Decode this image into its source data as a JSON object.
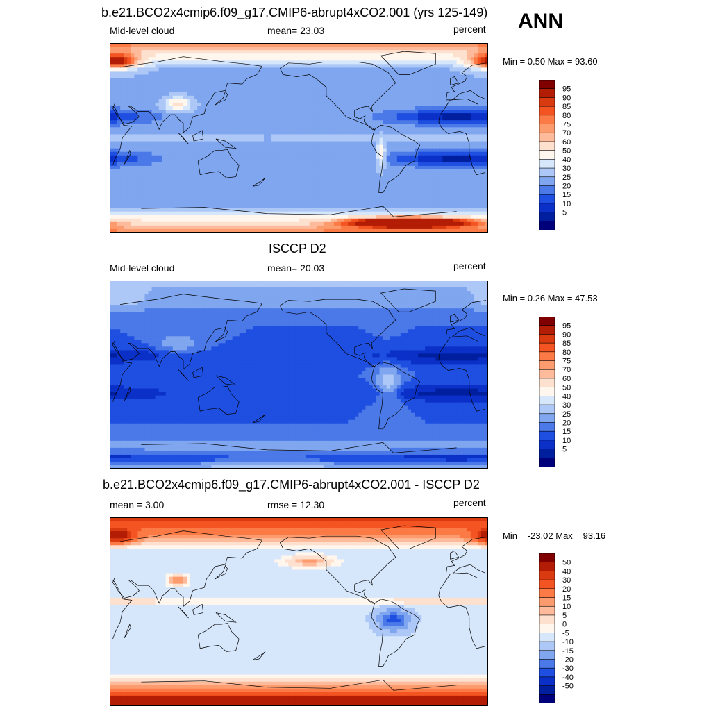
{
  "season": "ANN",
  "panels": [
    {
      "id": "model",
      "title": "b.e21.BCO2x4cmip6.f09_g17.CMIP6-abrupt4xCO2.001 (yrs 125-149)",
      "left_label": "Mid-level cloud",
      "center_label": "mean=  23.03",
      "right_label": "percent",
      "minmax": "Min =   0.50 Max =  93.60",
      "field_type": "model",
      "colorbar": {
        "labels": [
          "95",
          "90",
          "85",
          "80",
          "75",
          "70",
          "60",
          "50",
          "40",
          "30",
          "25",
          "20",
          "15",
          "10",
          "5"
        ],
        "colors": [
          "#800000",
          "#b31c05",
          "#d93a0f",
          "#f45422",
          "#fb7a45",
          "#fc9b6e",
          "#fdbb9b",
          "#fee0cf",
          "#fff6ee",
          "#d6e6fb",
          "#adc8f6",
          "#7fa6ef",
          "#4b79e8",
          "#1e4fe0",
          "#0b30c8",
          "#001f9e",
          "#00007a"
        ]
      }
    },
    {
      "id": "obs",
      "title": "ISCCP D2",
      "left_label": "Mid-level cloud",
      "center_label": "mean=  20.03",
      "right_label": "percent",
      "minmax": "Min =   0.26 Max =  47.53",
      "field_type": "obs",
      "colorbar": {
        "labels": [
          "95",
          "90",
          "85",
          "80",
          "75",
          "70",
          "60",
          "50",
          "40",
          "30",
          "25",
          "20",
          "15",
          "10",
          "5"
        ],
        "colors": [
          "#800000",
          "#b31c05",
          "#d93a0f",
          "#f45422",
          "#fb7a45",
          "#fc9b6e",
          "#fdbb9b",
          "#fee0cf",
          "#fff6ee",
          "#d6e6fb",
          "#adc8f6",
          "#7fa6ef",
          "#4b79e8",
          "#1e4fe0",
          "#0b30c8",
          "#001f9e",
          "#00007a"
        ]
      }
    },
    {
      "id": "diff",
      "title": "b.e21.BCO2x4cmip6.f09_g17.CMIP6-abrupt4xCO2.001 - ISCCP D2",
      "left_label": "mean =   3.00",
      "center_label": "rmse =  12.30",
      "right_label": "percent",
      "minmax": "Min = -23.02 Max =  93.16",
      "field_type": "diff",
      "colorbar": {
        "labels": [
          "50",
          "40",
          "30",
          "20",
          "15",
          "10",
          "5",
          "0",
          "-5",
          "-10",
          "-15",
          "-20",
          "-30",
          "-40",
          "-50"
        ],
        "colors": [
          "#800000",
          "#b31c05",
          "#d93a0f",
          "#f45422",
          "#fb7a45",
          "#fc9b6e",
          "#fdbb9b",
          "#fee0cf",
          "#fff6ee",
          "#d6e6fb",
          "#adc8f6",
          "#7fa6ef",
          "#4b79e8",
          "#1e4fe0",
          "#0b30c8",
          "#001f9e",
          "#00007a"
        ]
      }
    }
  ]
}
